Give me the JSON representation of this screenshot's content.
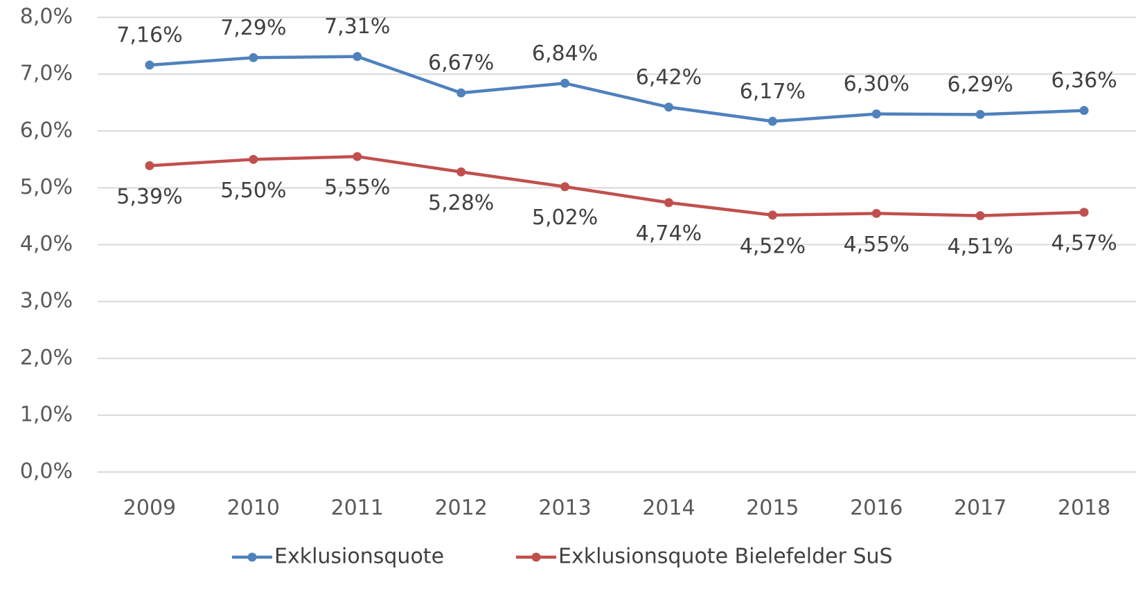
{
  "chart_data": {
    "type": "line",
    "categories": [
      "2009",
      "2010",
      "2011",
      "2012",
      "2013",
      "2014",
      "2015",
      "2016",
      "2017",
      "2018"
    ],
    "series": [
      {
        "name": "Exklusionsquote",
        "color": "#4f81bd",
        "values": [
          7.16,
          7.29,
          7.31,
          6.67,
          6.84,
          6.42,
          6.17,
          6.3,
          6.29,
          6.36
        ],
        "value_labels": [
          "7,16%",
          "7,29%",
          "7,31%",
          "6,67%",
          "6,84%",
          "6,42%",
          "6,17%",
          "6,30%",
          "6,29%",
          "6,36%"
        ]
      },
      {
        "name": "Exklusionsquote Bielefelder SuS",
        "color": "#c0504d",
        "values": [
          5.39,
          5.5,
          5.55,
          5.28,
          5.02,
          4.74,
          4.52,
          4.55,
          4.51,
          4.57
        ],
        "value_labels": [
          "5,39%",
          "5,50%",
          "5,55%",
          "5,28%",
          "5,02%",
          "4,74%",
          "4,52%",
          "4,55%",
          "4,51%",
          "4,57%"
        ]
      }
    ],
    "ylim": [
      0,
      8
    ],
    "yticks": [
      {
        "value": 0,
        "label": "0,0%"
      },
      {
        "value": 1,
        "label": "1,0%"
      },
      {
        "value": 2,
        "label": "2,0%"
      },
      {
        "value": 3,
        "label": "3,0%"
      },
      {
        "value": 4,
        "label": "4,0%"
      },
      {
        "value": 5,
        "label": "5,0%"
      },
      {
        "value": 6,
        "label": "6,0%"
      },
      {
        "value": 7,
        "label": "7,0%"
      },
      {
        "value": 8,
        "label": "8,0%"
      }
    ],
    "grid": true,
    "legend": "bottom"
  }
}
